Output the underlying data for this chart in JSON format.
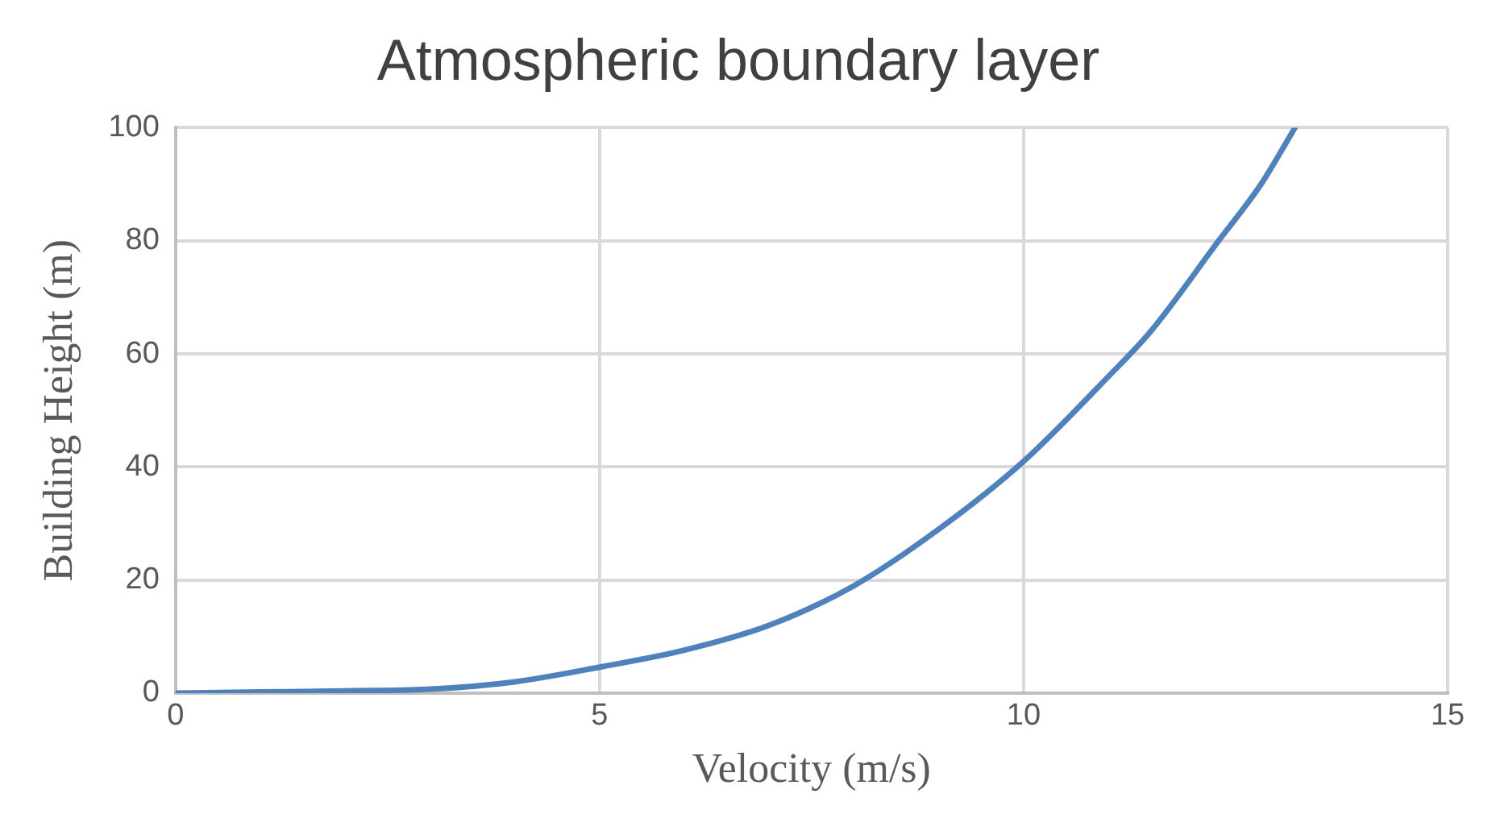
{
  "chart_data": {
    "type": "line",
    "title": "Atmospheric boundary layer",
    "xlabel": "Velocity (m/s)",
    "ylabel": "Building Height (m)",
    "x": [
      0,
      1,
      2,
      3,
      4,
      5,
      6,
      7,
      8,
      9,
      10,
      11,
      11.5,
      12.3,
      12.8,
      13.2
    ],
    "series": [
      {
        "color": "#4f81bd",
        "values": [
          0,
          0.2,
          0.4,
          0.7,
          2,
          4.6,
          7.6,
          12,
          19,
          29,
          41,
          56,
          64,
          80,
          90,
          100
        ]
      }
    ],
    "xlim": [
      0,
      15
    ],
    "xticks": [
      0,
      5,
      10,
      15
    ],
    "ylim": [
      0,
      100
    ],
    "yticks": [
      0,
      20,
      40,
      60,
      80,
      100
    ],
    "grid": true,
    "legend": false,
    "marker": "none",
    "line_style": "solid"
  }
}
